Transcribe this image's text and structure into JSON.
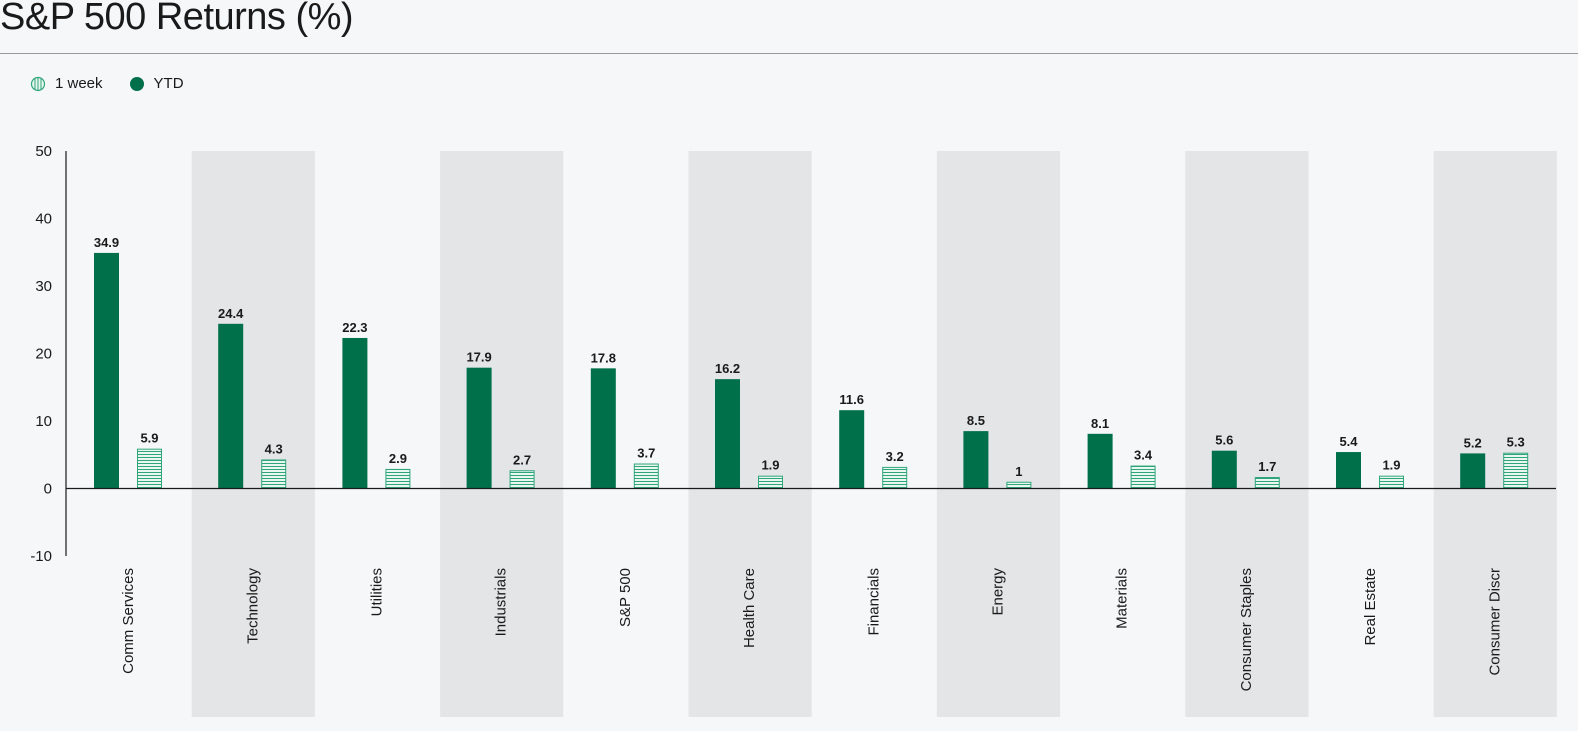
{
  "title": "S&P 500 Returns (%)",
  "legend": {
    "week_label": "1 week",
    "ytd_label": "YTD"
  },
  "colors": {
    "ytd": "#00704a",
    "week_stroke": "#2fa57a",
    "week_fill": "#eaf6f0",
    "band": "#e4e5e7",
    "background": "#f5f7f9"
  },
  "chart_data": {
    "type": "bar",
    "title": "S&P 500 Returns (%)",
    "xlabel": "",
    "ylabel": "",
    "ylim": [
      -10,
      50
    ],
    "yticks": [
      50,
      40,
      30,
      20,
      10,
      0,
      -10
    ],
    "legend_position": "top-left",
    "grid": false,
    "categories": [
      "Comm Services",
      "Technology",
      "Utilities",
      "Industrials",
      "S&P 500",
      "Health Care",
      "Financials",
      "Energy",
      "Materials",
      "Consumer Staples",
      "Real Estate",
      "Consumer Discr"
    ],
    "series": [
      {
        "name": "YTD",
        "values": [
          34.9,
          24.4,
          22.3,
          17.9,
          17.8,
          16.2,
          11.6,
          8.5,
          8.1,
          5.6,
          5.4,
          5.2
        ]
      },
      {
        "name": "1 week",
        "values": [
          5.9,
          4.3,
          2.9,
          2.7,
          3.7,
          1.9,
          3.2,
          1,
          3.4,
          1.7,
          1.9,
          5.3
        ]
      }
    ]
  }
}
